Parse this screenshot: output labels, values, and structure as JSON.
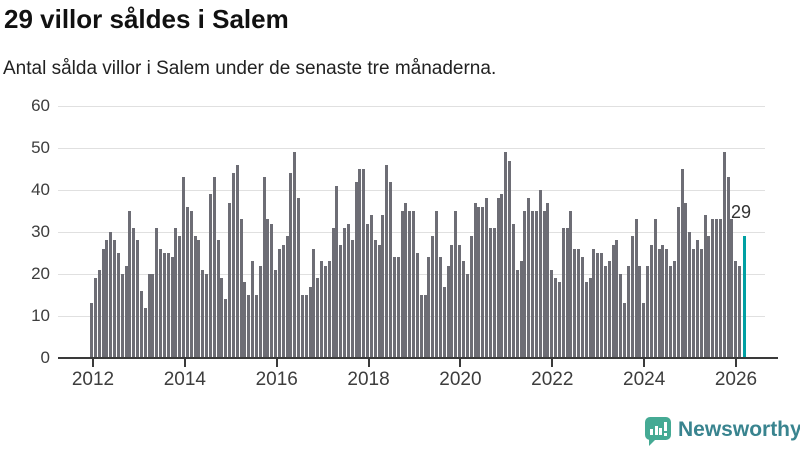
{
  "header": {
    "title": "29 villor såldes i Salem",
    "subtitle": "Antal sålda villor i Salem under de senaste tre månaderna."
  },
  "chart_data": {
    "type": "bar",
    "title": "29 villor såldes i Salem",
    "subtitle": "Antal sålda villor i Salem under de senaste tre månaderna.",
    "xlabel": "",
    "ylabel": "",
    "ylim": [
      0,
      60
    ],
    "yticks": [
      0,
      10,
      20,
      30,
      40,
      50,
      60
    ],
    "xtick_labels": [
      "2012",
      "2014",
      "2016",
      "2018",
      "2020",
      "2022",
      "2024",
      "2026"
    ],
    "grid": "horizontal",
    "legend": "none",
    "bar_color": "#6d6d75",
    "highlight_color": "#00a0a3",
    "values": [
      13,
      19,
      21,
      26,
      28,
      30,
      28,
      25,
      20,
      22,
      35,
      31,
      28,
      16,
      12,
      20,
      20,
      31,
      26,
      25,
      25,
      24,
      31,
      29,
      43,
      36,
      35,
      29,
      28,
      21,
      20,
      39,
      43,
      28,
      19,
      14,
      37,
      44,
      46,
      33,
      18,
      15,
      23,
      15,
      22,
      43,
      33,
      32,
      21,
      26,
      27,
      29,
      44,
      49,
      38,
      15,
      15,
      17,
      26,
      19,
      23,
      22,
      23,
      31,
      41,
      27,
      31,
      32,
      28,
      42,
      45,
      45,
      32,
      34,
      28,
      27,
      34,
      46,
      42,
      24,
      24,
      35,
      37,
      35,
      35,
      25,
      15,
      15,
      24,
      29,
      35,
      24,
      17,
      22,
      27,
      35,
      27,
      23,
      20,
      29,
      37,
      36,
      36,
      38,
      31,
      31,
      38,
      39,
      49,
      47,
      32,
      21,
      23,
      35,
      38,
      35,
      35,
      40,
      35,
      37,
      21,
      19,
      18,
      31,
      31,
      35,
      26,
      26,
      24,
      18,
      19,
      26,
      25,
      25,
      22,
      23,
      27,
      28,
      20,
      13,
      22,
      29,
      33,
      22,
      13,
      22,
      27,
      33,
      26,
      27,
      26,
      22,
      23,
      36,
      45,
      37,
      30,
      26,
      28,
      26,
      34,
      29,
      33,
      33,
      33,
      49,
      43,
      33,
      23,
      22,
      29
    ],
    "highlight_index": 170,
    "annotation": {
      "text": "29",
      "value": 29
    }
  },
  "branding": {
    "label": "Newsworthy",
    "icon": "newsworthy-chart-bubble-icon",
    "icon_color": "#45aa94",
    "label_color": "#39848f"
  }
}
